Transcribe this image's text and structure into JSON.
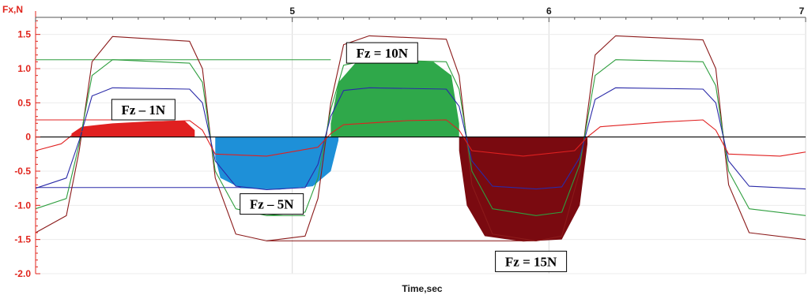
{
  "chart_data": {
    "type": "line",
    "xlabel": "Time,sec",
    "ylabel": "Fx,N",
    "xlim": [
      4.0,
      7.0
    ],
    "ylim": [
      -2.0,
      1.75
    ],
    "x_ticks": [
      5,
      6,
      7
    ],
    "y_ticks": [
      1.5,
      1.0,
      0.5,
      0,
      -0.5,
      -1.0,
      -1.5,
      -2.0
    ],
    "y_tick_labels": [
      "1.5",
      "1.0",
      "0.5",
      "0",
      "-0.5",
      "-1.0",
      "-1.5",
      "-2.0"
    ],
    "grid": true,
    "series": [
      {
        "color": "#8b1a1a",
        "x": [
          4.0,
          4.12,
          4.17,
          4.22,
          4.3,
          4.6,
          4.65,
          4.7,
          4.78,
          4.9,
          5.05,
          5.1,
          5.15,
          5.2,
          5.3,
          5.6,
          5.65,
          5.7,
          5.78,
          5.95,
          6.05,
          6.12,
          6.18,
          6.26,
          6.6,
          6.65,
          6.7,
          6.78,
          7.0
        ],
        "y": [
          -1.4,
          -1.15,
          -0.2,
          1.1,
          1.47,
          1.4,
          1.0,
          -0.6,
          -1.42,
          -1.52,
          -1.45,
          -0.9,
          0.5,
          1.35,
          1.48,
          1.43,
          0.9,
          -0.7,
          -1.42,
          -1.52,
          -1.45,
          -0.5,
          1.2,
          1.48,
          1.42,
          1.0,
          -0.7,
          -1.4,
          -1.5
        ]
      },
      {
        "color": "#2e9e3e",
        "x": [
          4.0,
          4.12,
          4.17,
          4.22,
          4.3,
          4.6,
          4.65,
          4.7,
          4.78,
          4.9,
          5.05,
          5.1,
          5.15,
          5.2,
          5.3,
          5.6,
          5.65,
          5.7,
          5.78,
          5.95,
          6.05,
          6.12,
          6.18,
          6.26,
          6.6,
          6.65,
          6.7,
          6.78,
          7.0
        ],
        "y": [
          -1.05,
          -0.9,
          -0.1,
          0.9,
          1.13,
          1.08,
          0.8,
          -0.5,
          -1.05,
          -1.15,
          -1.1,
          -0.6,
          0.4,
          1.05,
          1.13,
          1.1,
          0.7,
          -0.5,
          -1.05,
          -1.15,
          -1.1,
          -0.4,
          0.9,
          1.13,
          1.1,
          0.75,
          -0.5,
          -1.05,
          -1.15
        ]
      },
      {
        "color": "#2a2aa8",
        "x": [
          4.0,
          4.12,
          4.17,
          4.22,
          4.3,
          4.6,
          4.65,
          4.7,
          4.78,
          4.9,
          5.05,
          5.1,
          5.15,
          5.2,
          5.3,
          5.6,
          5.65,
          5.7,
          5.78,
          5.95,
          6.05,
          6.12,
          6.18,
          6.26,
          6.6,
          6.65,
          6.7,
          6.78,
          7.0
        ],
        "y": [
          -0.75,
          -0.6,
          -0.05,
          0.6,
          0.72,
          0.7,
          0.5,
          -0.35,
          -0.72,
          -0.77,
          -0.74,
          -0.4,
          0.3,
          0.68,
          0.72,
          0.7,
          0.45,
          -0.35,
          -0.72,
          -0.76,
          -0.73,
          -0.3,
          0.55,
          0.72,
          0.7,
          0.5,
          -0.35,
          -0.72,
          -0.76
        ]
      },
      {
        "color": "#e02020",
        "x": [
          4.0,
          4.1,
          4.15,
          4.25,
          4.45,
          4.6,
          4.65,
          4.7,
          4.9,
          5.1,
          5.15,
          5.2,
          5.45,
          5.6,
          5.65,
          5.7,
          5.9,
          6.1,
          6.15,
          6.2,
          6.45,
          6.6,
          6.65,
          6.7,
          6.9,
          7.0
        ],
        "y": [
          -0.2,
          -0.1,
          0.05,
          0.15,
          0.22,
          0.24,
          0.1,
          -0.25,
          -0.28,
          -0.15,
          0.05,
          0.18,
          0.24,
          0.25,
          0.1,
          -0.2,
          -0.28,
          -0.2,
          0.0,
          0.15,
          0.22,
          0.25,
          0.1,
          -0.25,
          -0.28,
          -0.22
        ]
      }
    ],
    "fills": [
      {
        "label": "Fz = 1N",
        "color": "#e02020",
        "x_range": [
          4.14,
          4.62
        ],
        "x": [
          4.14,
          4.18,
          4.3,
          4.45,
          4.58,
          4.62
        ],
        "y": [
          0.05,
          0.15,
          0.2,
          0.23,
          0.24,
          0.1
        ]
      },
      {
        "label": "Fz = 5N",
        "color": "#1e90d8",
        "x_range": [
          4.7,
          5.18
        ],
        "x": [
          4.7,
          4.72,
          4.8,
          4.95,
          5.08,
          5.15,
          5.18
        ],
        "y": [
          -0.3,
          -0.6,
          -0.75,
          -0.77,
          -0.72,
          -0.5,
          -0.05
        ]
      },
      {
        "label": "Fz = 10N",
        "color": "#2fa84a",
        "x_range": [
          5.15,
          5.65
        ],
        "x": [
          5.15,
          5.18,
          5.25,
          5.4,
          5.55,
          5.62,
          5.65
        ],
        "y": [
          0.2,
          0.8,
          1.1,
          1.12,
          1.1,
          0.9,
          0.2
        ]
      },
      {
        "label": "Fz = 15N",
        "color": "#7a0a10",
        "x_range": [
          5.65,
          6.15
        ],
        "x": [
          5.65,
          5.68,
          5.75,
          5.9,
          6.05,
          6.12,
          6.15
        ],
        "y": [
          -0.2,
          -1.0,
          -1.45,
          -1.53,
          -1.5,
          -1.0,
          -0.1
        ]
      }
    ],
    "annotations": [
      {
        "text": "Fz – 1N",
        "x": 4.42,
        "y": 0.4
      },
      {
        "text": "Fz – 5N",
        "x": 4.92,
        "y": -0.98
      },
      {
        "text": "Fz = 10N",
        "x": 5.35,
        "y": 1.23
      },
      {
        "text": "Fz = 15N",
        "x": 5.93,
        "y": -1.82
      }
    ],
    "reference_lines": [
      {
        "color": "#2e9e3e",
        "y": 1.13,
        "x_range": [
          4.0,
          5.15
        ]
      },
      {
        "color": "#e02020",
        "y": 0.25,
        "x_range": [
          4.0,
          4.35
        ]
      },
      {
        "color": "#2a2aa8",
        "y": -0.74,
        "x_range": [
          4.0,
          4.8
        ]
      },
      {
        "color": "#2e9e3e",
        "y": -1.15,
        "x_range": [
          4.9,
          5.05
        ]
      },
      {
        "color": "#8b1a1a",
        "y": -1.52,
        "x_range": [
          4.9,
          5.95
        ]
      }
    ]
  }
}
